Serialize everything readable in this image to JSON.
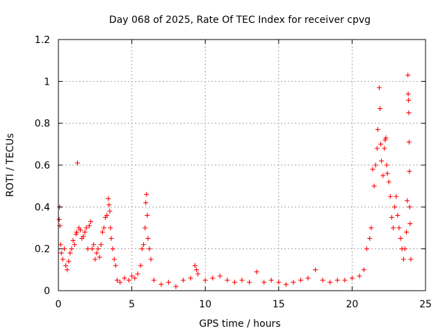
{
  "chart_data": {
    "type": "scatter",
    "title": "Day 068 of 2025, Rate Of TEC Index for receiver cpvg",
    "xlabel": "GPS time / hours",
    "ylabel": "ROTI / TECUs",
    "xlim": [
      0,
      25
    ],
    "ylim": [
      0,
      1.2
    ],
    "xticks": [
      0,
      5,
      10,
      15,
      20,
      25
    ],
    "xtick_labels": [
      "0",
      "5",
      "10",
      "15",
      "20",
      "25"
    ],
    "yticks": [
      0,
      0.2,
      0.4,
      0.6,
      0.8,
      1.0,
      1.2
    ],
    "ytick_labels": [
      "0",
      "0.2",
      "0.4",
      "0.6",
      "0.8",
      "1",
      "1.2"
    ],
    "grid": true,
    "marker": "+",
    "color": "#ff0000",
    "series": [
      {
        "name": "ROTI",
        "points": [
          [
            0.05,
            0.34
          ],
          [
            0.1,
            0.31
          ],
          [
            0.08,
            0.4
          ],
          [
            0.15,
            0.22
          ],
          [
            0.2,
            0.18
          ],
          [
            0.3,
            0.15
          ],
          [
            0.4,
            0.2
          ],
          [
            0.5,
            0.12
          ],
          [
            0.6,
            0.1
          ],
          [
            0.7,
            0.14
          ],
          [
            0.8,
            0.18
          ],
          [
            0.9,
            0.2
          ],
          [
            1.0,
            0.24
          ],
          [
            1.1,
            0.22
          ],
          [
            1.2,
            0.27
          ],
          [
            1.25,
            0.28
          ],
          [
            1.3,
            0.61
          ],
          [
            1.4,
            0.3
          ],
          [
            1.5,
            0.29
          ],
          [
            1.6,
            0.25
          ],
          [
            1.7,
            0.26
          ],
          [
            1.8,
            0.28
          ],
          [
            1.9,
            0.3
          ],
          [
            2.0,
            0.2
          ],
          [
            2.1,
            0.31
          ],
          [
            2.2,
            0.33
          ],
          [
            2.3,
            0.2
          ],
          [
            2.4,
            0.22
          ],
          [
            2.5,
            0.15
          ],
          [
            2.6,
            0.18
          ],
          [
            2.7,
            0.2
          ],
          [
            2.8,
            0.16
          ],
          [
            2.9,
            0.22
          ],
          [
            3.0,
            0.28
          ],
          [
            3.1,
            0.3
          ],
          [
            3.2,
            0.35
          ],
          [
            3.3,
            0.36
          ],
          [
            3.4,
            0.44
          ],
          [
            3.45,
            0.41
          ],
          [
            3.5,
            0.38
          ],
          [
            3.55,
            0.3
          ],
          [
            3.6,
            0.25
          ],
          [
            3.7,
            0.2
          ],
          [
            3.8,
            0.15
          ],
          [
            3.9,
            0.12
          ],
          [
            4.0,
            0.05
          ],
          [
            4.2,
            0.04
          ],
          [
            4.5,
            0.06
          ],
          [
            4.8,
            0.05
          ],
          [
            5.0,
            0.07
          ],
          [
            5.2,
            0.06
          ],
          [
            5.4,
            0.08
          ],
          [
            5.6,
            0.12
          ],
          [
            5.7,
            0.2
          ],
          [
            5.8,
            0.22
          ],
          [
            5.9,
            0.3
          ],
          [
            6.0,
            0.46
          ],
          [
            5.95,
            0.42
          ],
          [
            6.05,
            0.36
          ],
          [
            6.1,
            0.25
          ],
          [
            6.2,
            0.2
          ],
          [
            6.3,
            0.15
          ],
          [
            6.5,
            0.05
          ],
          [
            7.0,
            0.03
          ],
          [
            7.5,
            0.04
          ],
          [
            8.0,
            0.02
          ],
          [
            8.5,
            0.05
          ],
          [
            9.0,
            0.06
          ],
          [
            9.3,
            0.12
          ],
          [
            9.4,
            0.1
          ],
          [
            9.5,
            0.08
          ],
          [
            10.0,
            0.05
          ],
          [
            10.5,
            0.06
          ],
          [
            11.0,
            0.07
          ],
          [
            11.5,
            0.05
          ],
          [
            12.0,
            0.04
          ],
          [
            12.5,
            0.05
          ],
          [
            13.0,
            0.04
          ],
          [
            13.5,
            0.09
          ],
          [
            14.0,
            0.04
          ],
          [
            14.5,
            0.05
          ],
          [
            15.0,
            0.04
          ],
          [
            15.5,
            0.03
          ],
          [
            16.0,
            0.04
          ],
          [
            16.5,
            0.05
          ],
          [
            17.0,
            0.06
          ],
          [
            17.5,
            0.1
          ],
          [
            18.0,
            0.05
          ],
          [
            18.5,
            0.04
          ],
          [
            19.0,
            0.05
          ],
          [
            19.5,
            0.05
          ],
          [
            20.0,
            0.06
          ],
          [
            20.5,
            0.07
          ],
          [
            20.8,
            0.1
          ],
          [
            21.0,
            0.2
          ],
          [
            21.2,
            0.25
          ],
          [
            21.3,
            0.3
          ],
          [
            21.4,
            0.58
          ],
          [
            21.5,
            0.5
          ],
          [
            21.6,
            0.6
          ],
          [
            21.7,
            0.68
          ],
          [
            21.75,
            0.77
          ],
          [
            21.85,
            0.97
          ],
          [
            21.9,
            0.87
          ],
          [
            21.95,
            0.7
          ],
          [
            22.0,
            0.62
          ],
          [
            22.1,
            0.55
          ],
          [
            22.2,
            0.68
          ],
          [
            22.25,
            0.72
          ],
          [
            22.3,
            0.73
          ],
          [
            22.35,
            0.6
          ],
          [
            22.4,
            0.56
          ],
          [
            22.5,
            0.52
          ],
          [
            22.6,
            0.45
          ],
          [
            22.7,
            0.35
          ],
          [
            22.8,
            0.3
          ],
          [
            22.9,
            0.4
          ],
          [
            23.0,
            0.45
          ],
          [
            23.1,
            0.36
          ],
          [
            23.2,
            0.3
          ],
          [
            23.3,
            0.25
          ],
          [
            23.4,
            0.2
          ],
          [
            23.5,
            0.15
          ],
          [
            23.6,
            0.2
          ],
          [
            23.7,
            0.28
          ],
          [
            23.75,
            0.43
          ],
          [
            23.8,
            1.03
          ],
          [
            23.82,
            0.94
          ],
          [
            23.84,
            0.91
          ],
          [
            23.86,
            0.85
          ],
          [
            23.88,
            0.71
          ],
          [
            23.9,
            0.57
          ],
          [
            23.92,
            0.4
          ],
          [
            23.95,
            0.32
          ],
          [
            24.0,
            0.15
          ]
        ]
      }
    ]
  }
}
